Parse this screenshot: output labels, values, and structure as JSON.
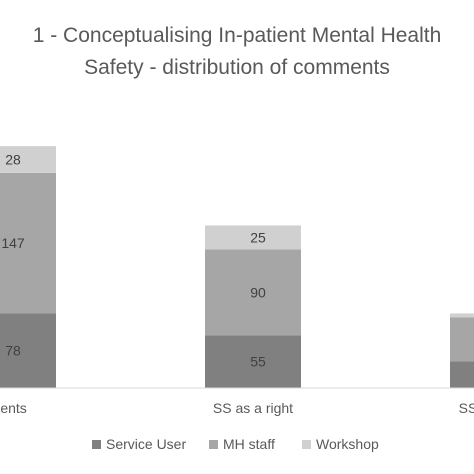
{
  "chart_data": {
    "type": "bar",
    "stacked": true,
    "title_lines": [
      "1 - Conceptualising In-patient Mental Health",
      "Safety - distribution of comments"
    ],
    "categories": [
      "All comments",
      "SS as a right",
      "SS as a ..."
    ],
    "category_labels_visible": [
      "omments",
      "SS as a right",
      "SS"
    ],
    "series": [
      {
        "name": "Service User",
        "color": "#808080",
        "values": [
          78,
          55,
          28
        ]
      },
      {
        "name": "MH staff",
        "color": "#a6a6a6",
        "values": [
          147,
          90,
          46
        ]
      },
      {
        "name": "Workshop",
        "color": "#d0d0d0",
        "values": [
          28,
          25,
          4
        ]
      }
    ],
    "data_labels_visible": [
      [
        "78",
        "147",
        "28"
      ],
      [
        "55",
        "90",
        "25"
      ],
      [
        "",
        "",
        ""
      ]
    ],
    "ylim": [
      0,
      253
    ],
    "gridlines": false,
    "legend_position": "bottom"
  }
}
